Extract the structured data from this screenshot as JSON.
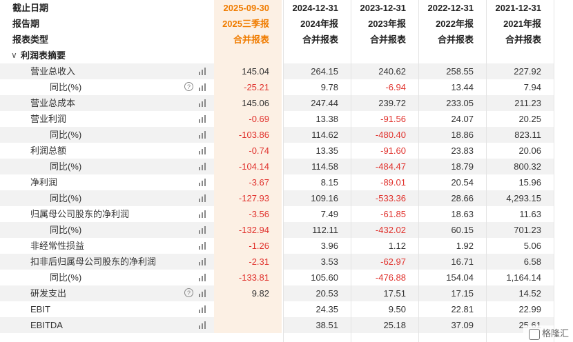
{
  "header_rows": [
    {
      "label": "截止日期",
      "values": [
        "2025-09-30",
        "2024-12-31",
        "2023-12-31",
        "2022-12-31",
        "2021-12-31"
      ]
    },
    {
      "label": "报告期",
      "values": [
        "2025三季报",
        "2024年报",
        "2023年报",
        "2022年报",
        "2021年报"
      ]
    },
    {
      "label": "报表类型",
      "values": [
        "合并报表",
        "合并报表",
        "合并报表",
        "合并报表",
        "合并报表"
      ]
    }
  ],
  "section": {
    "label": "利润表摘要"
  },
  "rows": [
    {
      "label": "营业总收入",
      "level": 1,
      "help": false,
      "values": [
        "145.04",
        "264.15",
        "240.62",
        "258.55",
        "227.92"
      ]
    },
    {
      "label": "同比(%)",
      "level": 2,
      "help": true,
      "values": [
        "-25.21",
        "9.78",
        "-6.94",
        "13.44",
        "7.94"
      ]
    },
    {
      "label": "营业总成本",
      "level": 1,
      "help": false,
      "values": [
        "145.06",
        "247.44",
        "239.72",
        "233.05",
        "211.23"
      ]
    },
    {
      "label": "营业利润",
      "level": 1,
      "help": false,
      "values": [
        "-0.69",
        "13.38",
        "-91.56",
        "24.07",
        "20.25"
      ]
    },
    {
      "label": "同比(%)",
      "level": 2,
      "help": false,
      "values": [
        "-103.86",
        "114.62",
        "-480.40",
        "18.86",
        "823.11"
      ]
    },
    {
      "label": "利润总额",
      "level": 1,
      "help": false,
      "values": [
        "-0.74",
        "13.35",
        "-91.60",
        "23.83",
        "20.06"
      ]
    },
    {
      "label": "同比(%)",
      "level": 2,
      "help": false,
      "values": [
        "-104.14",
        "114.58",
        "-484.47",
        "18.79",
        "800.32"
      ]
    },
    {
      "label": "净利润",
      "level": 1,
      "help": false,
      "values": [
        "-3.67",
        "8.15",
        "-89.01",
        "20.54",
        "15.96"
      ]
    },
    {
      "label": "同比(%)",
      "level": 2,
      "help": false,
      "values": [
        "-127.93",
        "109.16",
        "-533.36",
        "28.66",
        "4,293.15"
      ]
    },
    {
      "label": "归属母公司股东的净利润",
      "level": 1,
      "help": false,
      "values": [
        "-3.56",
        "7.49",
        "-61.85",
        "18.63",
        "11.63"
      ]
    },
    {
      "label": "同比(%)",
      "level": 2,
      "help": false,
      "values": [
        "-132.94",
        "112.11",
        "-432.02",
        "60.15",
        "701.23"
      ]
    },
    {
      "label": "非经常性损益",
      "level": 1,
      "help": false,
      "values": [
        "-1.26",
        "3.96",
        "1.12",
        "1.92",
        "5.06"
      ]
    },
    {
      "label": "扣非后归属母公司股东的净利润",
      "level": 1,
      "help": false,
      "values": [
        "-2.31",
        "3.53",
        "-62.97",
        "16.71",
        "6.58"
      ]
    },
    {
      "label": "同比(%)",
      "level": 2,
      "help": false,
      "values": [
        "-133.81",
        "105.60",
        "-476.88",
        "154.04",
        "1,164.14"
      ]
    },
    {
      "label": "研发支出",
      "level": 1,
      "help": true,
      "values": [
        "9.82",
        "20.53",
        "17.51",
        "17.15",
        "14.52"
      ]
    },
    {
      "label": "EBIT",
      "level": 1,
      "help": false,
      "values": [
        "",
        "24.35",
        "9.50",
        "22.81",
        "22.99"
      ]
    },
    {
      "label": "EBITDA",
      "level": 1,
      "help": false,
      "values": [
        "",
        "38.51",
        "25.18",
        "37.09",
        "25.61"
      ]
    }
  ],
  "watermark": "格隆汇",
  "icons": {
    "bar": "bar-chart-icon",
    "help": "question-circle-icon",
    "collapse": "chevron-down-icon"
  },
  "colors": {
    "negative": "#e0312c",
    "current_period": "#f07c00",
    "current_bg": "#fcf0e4",
    "row_shade": "#f2f2f2"
  }
}
